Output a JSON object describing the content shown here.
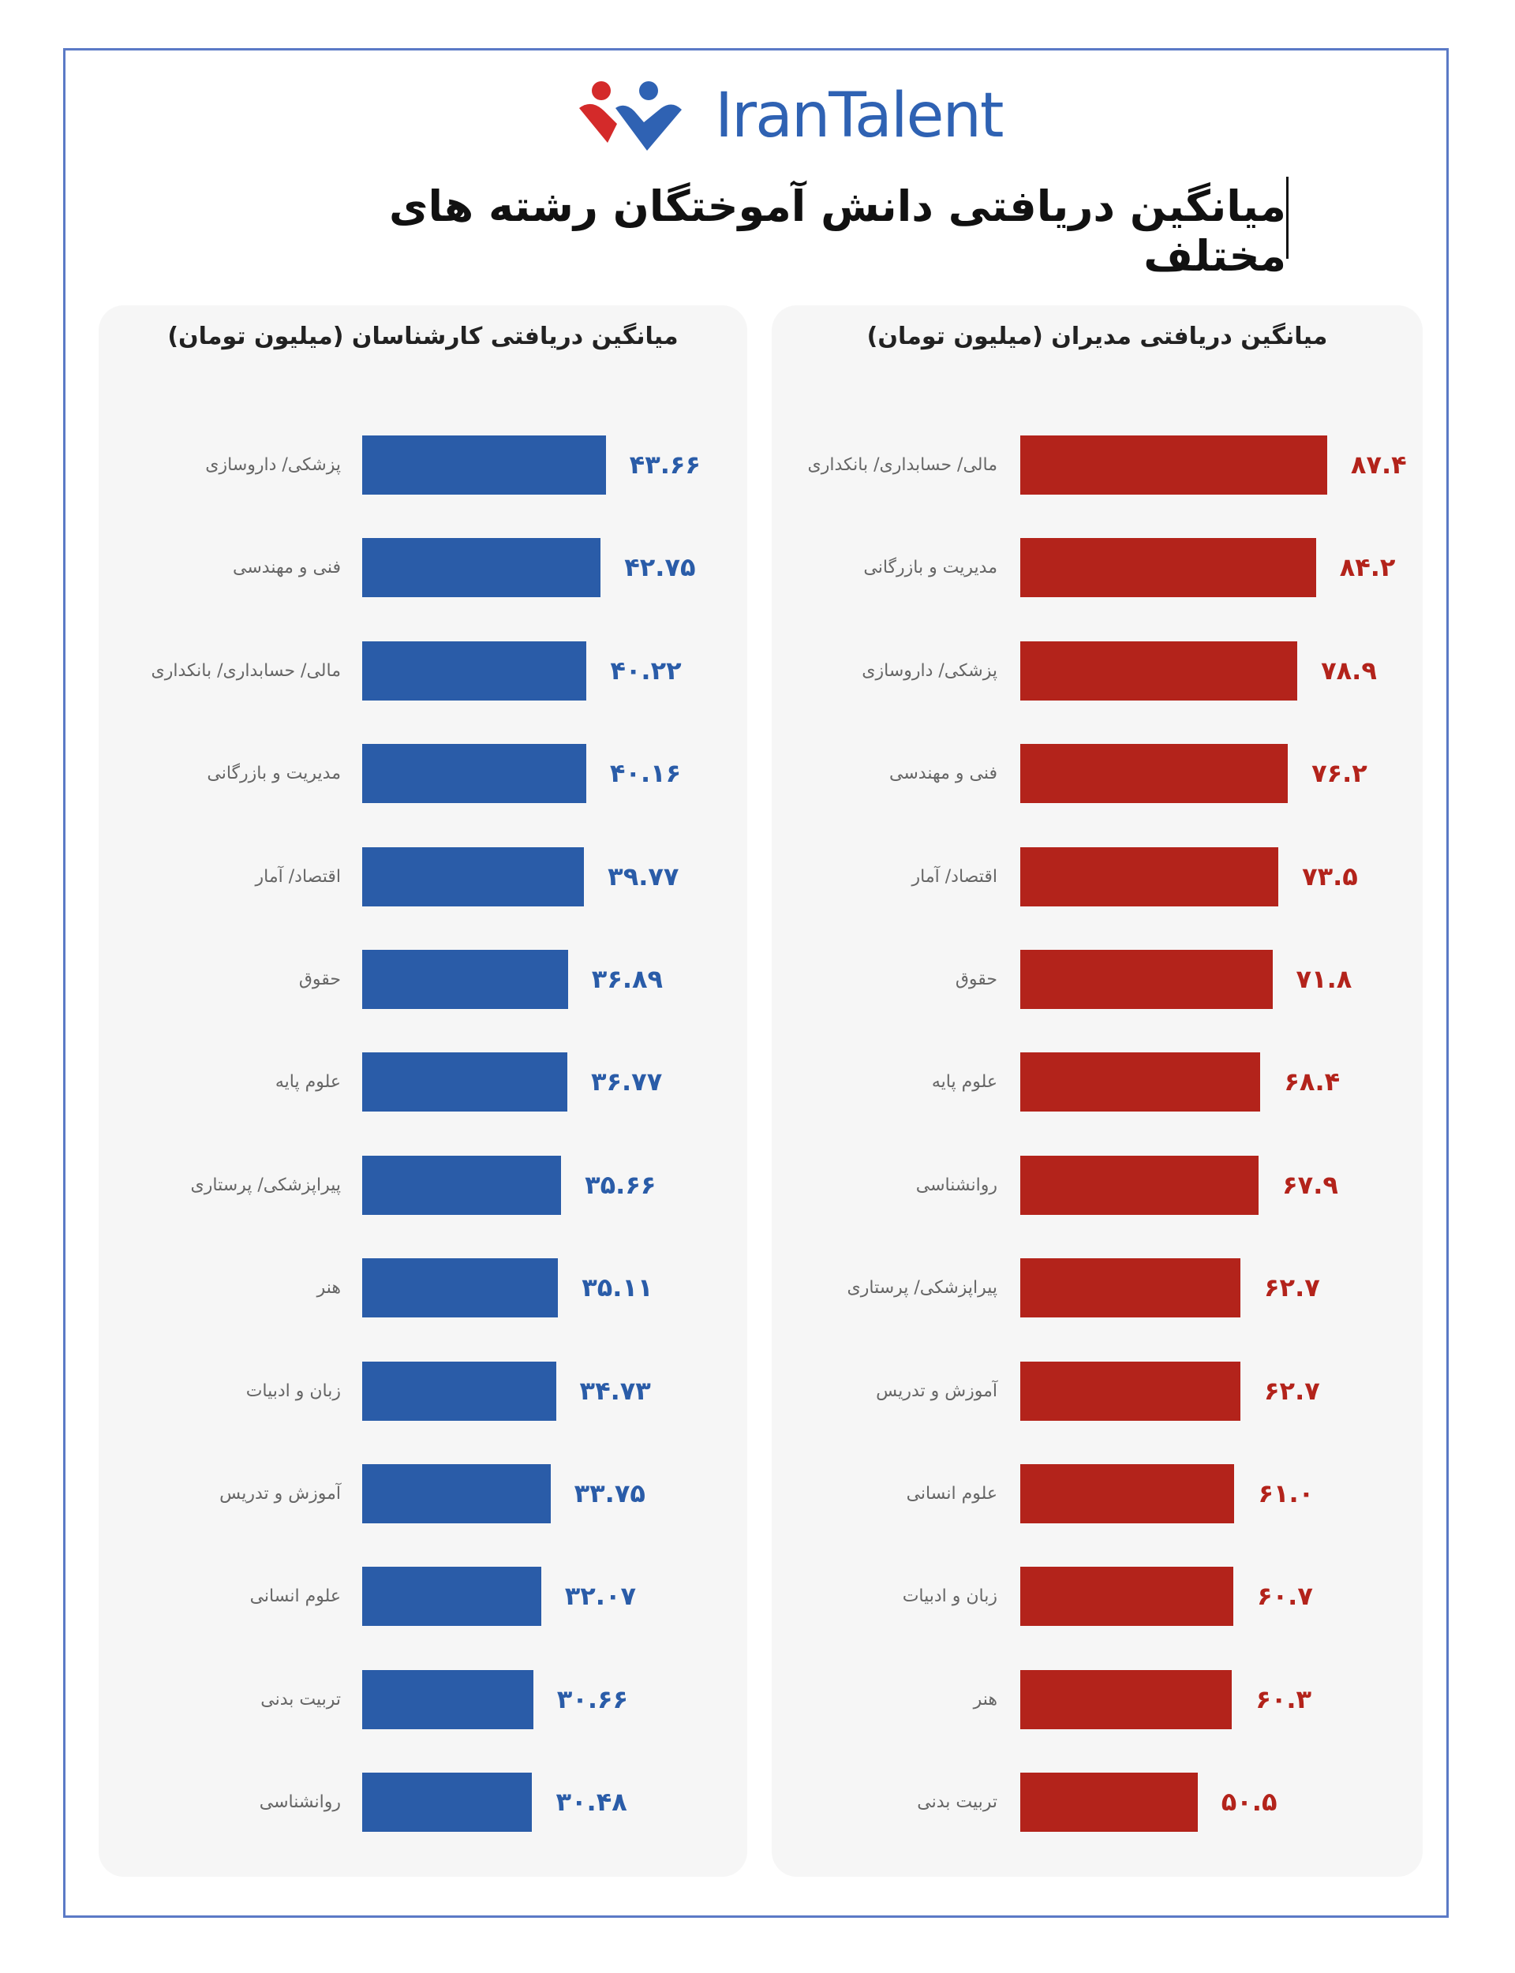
{
  "header": {
    "logo_text": "IranTalent",
    "title": "میانگین دریافتی دانش آموختگان رشته های مختلف"
  },
  "colors": {
    "managers": "#b3231b",
    "experts": "#2a5ca8",
    "frame": "#5b7ac6",
    "brand": "#2f62b3"
  },
  "chart_data": [
    {
      "type": "bar",
      "orientation": "horizontal",
      "title": "میانگین دریافتی مدیران (میلیون تومان)",
      "categories": [
        "مالی/ حسابداری/ بانکداری",
        "مدیریت و بازرگانی",
        "پزشکی/ داروسازی",
        "فنی و مهندسی",
        "اقتصاد/ آمار",
        "حقوق",
        "علوم پایه",
        "روانشناسی",
        "پیراپزشکی/ پرستاری",
        "آموزش و تدریس",
        "علوم انسانی",
        "زبان و ادبیات",
        "هنر",
        "تربیت بدنی"
      ],
      "values": [
        87.4,
        84.2,
        78.9,
        76.2,
        73.5,
        71.8,
        68.4,
        67.9,
        62.7,
        62.7,
        61.0,
        60.7,
        60.3,
        50.5
      ],
      "value_labels": [
        "۸۷.۴",
        "۸۴.۲",
        "۷۸.۹",
        "۷۶.۲",
        "۷۳.۵",
        "۷۱.۸",
        "۶۸.۴",
        "۶۷.۹",
        "۶۲.۷",
        "۶۲.۷",
        "۶۱.۰",
        "۶۰.۷",
        "۶۰.۳",
        "۵۰.۵"
      ],
      "color": "#b3231b",
      "grid": false
    },
    {
      "type": "bar",
      "orientation": "horizontal",
      "title": "میانگین دریافتی کارشناسان (میلیون تومان)",
      "categories": [
        "پزشکی/ داروسازی",
        "فنی و مهندسی",
        "مالی/ حسابداری/ بانکداری",
        "مدیریت و بازرگانی",
        "اقتصاد/ آمار",
        "حقوق",
        "علوم پایه",
        "پیراپزشکی/ پرستاری",
        "هنر",
        "زبان و ادبیات",
        "آموزش و تدریس",
        "علوم انسانی",
        "تربیت بدنی",
        "روانشناسی"
      ],
      "values": [
        43.66,
        42.75,
        40.22,
        40.16,
        39.77,
        36.89,
        36.77,
        35.66,
        35.11,
        34.73,
        33.75,
        32.07,
        30.66,
        30.48
      ],
      "value_labels": [
        "۴۳.۶۶",
        "۴۲.۷۵",
        "۴۰.۲۲",
        "۴۰.۱۶",
        "۳۹.۷۷",
        "۳۶.۸۹",
        "۳۶.۷۷",
        "۳۵.۶۶",
        "۳۵.۱۱",
        "۳۴.۷۳",
        "۳۳.۷۵",
        "۳۲.۰۷",
        "۳۰.۶۶",
        "۳۰.۴۸"
      ],
      "color": "#2a5ca8",
      "grid": false
    }
  ]
}
